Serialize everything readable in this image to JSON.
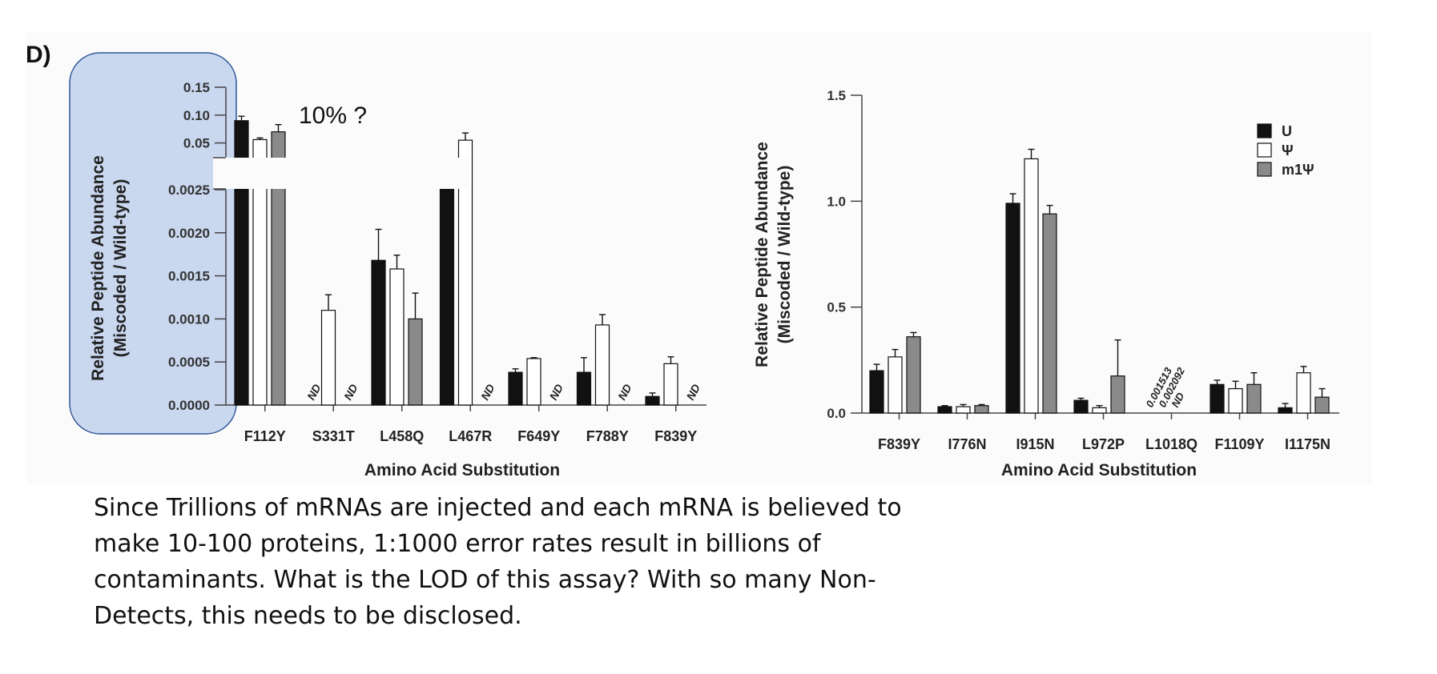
{
  "panel_label": "D)",
  "annotation": "10% ?",
  "caption": "Since Trillions of mRNAs are injected and each mRNA is believed to make 10-100 proteins, 1:1000 error rates result in billions of contaminants. What is the LOD of this assay? With so many Non-Detects, this needs to be disclosed.",
  "colors": {
    "U": "#111111",
    "Psi": "#ffffff",
    "m1Psi": "#8a8a8a",
    "highlight": "#c9d7ef",
    "highlight_border": "#2f5597"
  },
  "chart_data": [
    {
      "type": "bar",
      "xlabel": "Amino Acid Substitution",
      "ylabel_line1": "Relative Peptide Abundance",
      "ylabel_line2": "(Miscoded / Wild-type)",
      "broken_axis": true,
      "ylim_lower": [
        0,
        0.0025
      ],
      "ylim_upper": [
        0.025,
        0.15
      ],
      "yticks_lower": [
        "0.0000",
        "0.0005",
        "0.0010",
        "0.0015",
        "0.0020",
        "0.0025"
      ],
      "yticks_upper": [
        "0.05",
        "0.10",
        "0.15"
      ],
      "categories": [
        "F112Y",
        "S331T",
        "L458Q",
        "L467R",
        "F649Y",
        "F788Y",
        "F839Y"
      ],
      "nd_text": "ND",
      "series": [
        {
          "name": "U",
          "values": [
            0.09,
            null,
            0.00168,
            0.01,
            0.00038,
            0.00038,
            0.0001
          ],
          "errors": [
            0.008,
            null,
            0.00036,
            0.001,
            4e-05,
            0.00017,
            4e-05
          ]
        },
        {
          "name": "Ψ",
          "values": [
            0.056,
            0.0011,
            0.00158,
            0.055,
            0.00054,
            0.00093,
            0.00048
          ],
          "errors": [
            0.003,
            0.00018,
            0.00016,
            0.013,
            1e-05,
            0.00012,
            8e-05
          ]
        },
        {
          "name": "m1Ψ",
          "values": [
            0.07,
            null,
            0.001,
            null,
            null,
            null,
            null
          ],
          "errors": [
            0.013,
            null,
            0.0003,
            null,
            null,
            null,
            null
          ]
        }
      ]
    },
    {
      "type": "bar",
      "xlabel": "Amino Acid Substitution",
      "ylabel_line1": "Relative Peptide Abundance",
      "ylabel_line2": "(Miscoded / Wild-type)",
      "ylim": [
        0,
        1.5
      ],
      "yticks": [
        "0.0",
        "0.5",
        "1.0",
        "1.5"
      ],
      "categories": [
        "F839Y",
        "I776N",
        "I915N",
        "L972P",
        "L1018Q",
        "F1109Y",
        "I1175N"
      ],
      "annotations_L1018Q": [
        "0.001513",
        "0.002092",
        "ND"
      ],
      "legend_position": "top-right",
      "series": [
        {
          "name": "U",
          "values": [
            0.2,
            0.03,
            0.99,
            0.06,
            null,
            0.135,
            0.025
          ],
          "errors": [
            0.03,
            0.005,
            0.045,
            0.01,
            null,
            0.02,
            0.02
          ]
        },
        {
          "name": "Ψ",
          "values": [
            0.265,
            0.03,
            1.2,
            0.025,
            null,
            0.115,
            0.19
          ],
          "errors": [
            0.035,
            0.01,
            0.045,
            0.01,
            null,
            0.035,
            0.03
          ]
        },
        {
          "name": "m1Ψ",
          "values": [
            0.36,
            0.035,
            0.94,
            0.175,
            null,
            0.135,
            0.075
          ],
          "errors": [
            0.02,
            0.005,
            0.04,
            0.17,
            null,
            0.055,
            0.04
          ]
        }
      ]
    }
  ]
}
